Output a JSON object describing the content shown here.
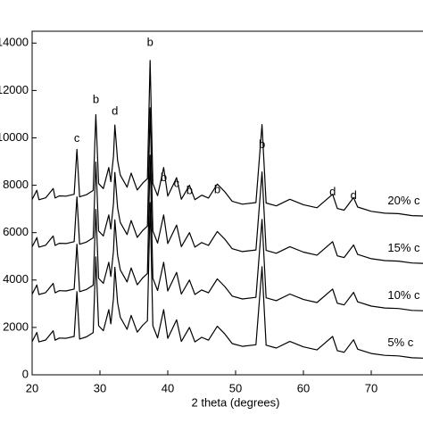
{
  "chart_data": {
    "type": "line",
    "xlabel": "2 theta (degrees)",
    "xlim": [
      20,
      80
    ],
    "ylim": [
      0,
      14500
    ],
    "xticks": [
      20,
      30,
      40,
      50,
      60,
      70
    ],
    "yticks": [
      0,
      2000,
      4000,
      6000,
      8000,
      10000,
      12000,
      14000
    ],
    "x": [
      20,
      20.7,
      21,
      22,
      23.1,
      23.4,
      24,
      25,
      26.2,
      26.6,
      27,
      28,
      29,
      29.4,
      29.8,
      30.5,
      31.3,
      31.6,
      32,
      32.2,
      32.6,
      33,
      34,
      34.6,
      35.5,
      36.3,
      37,
      37.4,
      37.8,
      38.5,
      39.4,
      40,
      41.3,
      42,
      43.2,
      44,
      45,
      46,
      47.3,
      48.4,
      49.5,
      51,
      53,
      53.9,
      54.5,
      56,
      58,
      60,
      62,
      64.3,
      65,
      66,
      67.4,
      68,
      70,
      72,
      74,
      76,
      78
    ],
    "series": [
      {
        "name": "5% c",
        "color": "#000000",
        "values": [
          1400,
          1790,
          1390,
          1470,
          1860,
          1460,
          1550,
          1540,
          1620,
          3510,
          1510,
          1600,
          1780,
          4980,
          2070,
          1860,
          2750,
          2150,
          3240,
          4540,
          3040,
          2430,
          1920,
          2510,
          1800,
          2090,
          2280,
          7270,
          2070,
          1560,
          2750,
          1540,
          2320,
          1410,
          2000,
          1390,
          1580,
          1460,
          2050,
          1730,
          1320,
          1200,
          1270,
          4560,
          1250,
          1130,
          1410,
          1180,
          1050,
          1620,
          1020,
          950,
          1480,
          1080,
          900,
          820,
          800,
          720,
          700
        ]
      },
      {
        "name": "10% c",
        "color": "#000000",
        "values": [
          3400,
          3790,
          3390,
          3470,
          3860,
          3460,
          3550,
          3540,
          3620,
          5510,
          3510,
          3600,
          3780,
          6980,
          4070,
          3860,
          4750,
          4150,
          5240,
          6540,
          5040,
          4430,
          3920,
          4510,
          3800,
          4090,
          4280,
          9270,
          4070,
          3560,
          4750,
          3540,
          4320,
          3410,
          4000,
          3390,
          3580,
          3460,
          4050,
          3730,
          3320,
          3200,
          3270,
          6560,
          3250,
          3130,
          3410,
          3180,
          3050,
          3620,
          3020,
          2950,
          3480,
          3080,
          2900,
          2820,
          2800,
          2720,
          2700
        ]
      },
      {
        "name": "15% c",
        "color": "#000000",
        "values": [
          5400,
          5790,
          5390,
          5470,
          5860,
          5460,
          5550,
          5540,
          5620,
          7510,
          5510,
          5600,
          5780,
          8980,
          6070,
          5860,
          6750,
          6150,
          7240,
          8540,
          7040,
          6430,
          5920,
          6510,
          5800,
          6090,
          6280,
          11270,
          6070,
          5560,
          6750,
          5540,
          6320,
          5410,
          6000,
          5390,
          5580,
          5460,
          6050,
          5730,
          5320,
          5200,
          5270,
          8560,
          5250,
          5130,
          5410,
          5180,
          5050,
          5620,
          5020,
          4950,
          5480,
          5080,
          4900,
          4820,
          4800,
          4720,
          4700
        ]
      },
      {
        "name": "20% c",
        "color": "#000000",
        "values": [
          7400,
          7790,
          7390,
          7470,
          7860,
          7460,
          7550,
          7540,
          7620,
          9510,
          7510,
          7600,
          7780,
          10980,
          8070,
          7860,
          8750,
          8150,
          9240,
          10540,
          9040,
          8430,
          7920,
          8510,
          7800,
          8090,
          8280,
          13270,
          8070,
          7560,
          8750,
          7540,
          8320,
          7410,
          8000,
          7390,
          7580,
          7460,
          8050,
          7730,
          7320,
          7200,
          7270,
          10560,
          7250,
          7130,
          7410,
          7180,
          7050,
          7620,
          7020,
          6950,
          7480,
          7080,
          6900,
          6820,
          6800,
          6720,
          6700
        ]
      }
    ],
    "annotations": [
      {
        "text": "c",
        "x": 26.6,
        "y": 9950
      },
      {
        "text": "b",
        "x": 29.4,
        "y": 11600
      },
      {
        "text": "d",
        "x": 32.2,
        "y": 11100
      },
      {
        "text": "b",
        "x": 37.4,
        "y": 14000
      },
      {
        "text": "b",
        "x": 39.4,
        "y": 8300
      },
      {
        "text": "c",
        "x": 41.3,
        "y": 8050
      },
      {
        "text": "b",
        "x": 43.2,
        "y": 7750
      },
      {
        "text": "b",
        "x": 47.3,
        "y": 7800
      },
      {
        "text": "b",
        "x": 53.9,
        "y": 9700
      },
      {
        "text": "d",
        "x": 64.3,
        "y": 7700
      },
      {
        "text": "d",
        "x": 67.4,
        "y": 7550
      }
    ]
  }
}
